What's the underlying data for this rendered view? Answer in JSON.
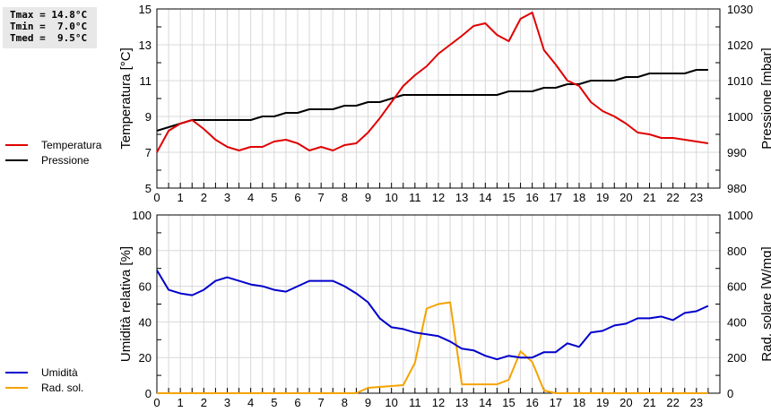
{
  "stats": {
    "tmax": "Tmax = 14.8°C",
    "tmin": "Tmin =  7.0°C",
    "tmed": "Tmed =  9.5°C"
  },
  "legend_top": [
    {
      "label": "Temperatura",
      "color": "#e00000"
    },
    {
      "label": "Pressione",
      "color": "#000000"
    }
  ],
  "legend_bottom": [
    {
      "label": "Umidità",
      "color": "#0000cc"
    },
    {
      "label": "Rad. sol.",
      "color": "#f5a300"
    }
  ],
  "chart_data": [
    {
      "type": "line",
      "title": "",
      "xlabel": "",
      "ylabel": "Temperatura [°C]",
      "y2label": "Pressione [mbar]",
      "xlim": [
        0,
        24
      ],
      "ylim": [
        5,
        15
      ],
      "y2lim": [
        980,
        1030
      ],
      "x_ticks": [
        0,
        1,
        2,
        3,
        4,
        5,
        6,
        7,
        8,
        9,
        10,
        11,
        12,
        13,
        14,
        15,
        16,
        17,
        18,
        19,
        20,
        21,
        22,
        23
      ],
      "y_ticks": [
        5,
        7,
        9,
        11,
        13,
        15
      ],
      "y2_ticks": [
        980,
        990,
        1000,
        1010,
        1020,
        1030
      ],
      "grid": true,
      "legend_position": "left",
      "x": [
        0,
        0.5,
        1,
        1.5,
        2,
        2.5,
        3,
        3.5,
        4,
        4.5,
        5,
        5.5,
        6,
        6.5,
        7,
        7.5,
        8,
        8.5,
        9,
        9.5,
        10,
        10.5,
        11,
        11.5,
        12,
        12.5,
        13,
        13.5,
        14,
        14.5,
        15,
        15.5,
        16,
        16.5,
        17,
        17.5,
        18,
        18.5,
        19,
        19.5,
        20,
        20.5,
        21,
        21.5,
        22,
        22.5,
        23,
        23.5
      ],
      "series": [
        {
          "name": "Temperatura",
          "axis": "left",
          "color": "#e00000",
          "values": [
            7.0,
            8.2,
            8.6,
            8.8,
            8.3,
            7.7,
            7.3,
            7.1,
            7.3,
            7.3,
            7.6,
            7.7,
            7.5,
            7.1,
            7.3,
            7.1,
            7.4,
            7.5,
            8.1,
            8.9,
            9.8,
            10.7,
            11.3,
            11.8,
            12.5,
            13.0,
            13.5,
            14.05,
            14.2,
            13.55,
            13.2,
            14.45,
            14.8,
            12.7,
            11.9,
            11.0,
            10.7,
            9.8,
            9.3,
            9.0,
            8.6,
            8.1,
            8.0,
            7.8,
            7.8,
            7.7,
            7.6,
            7.5
          ]
        },
        {
          "name": "Pressione",
          "axis": "right",
          "color": "#000000",
          "values": [
            996,
            997,
            998,
            999,
            999,
            999,
            999,
            999,
            999,
            1000,
            1000,
            1001,
            1001,
            1002,
            1002,
            1002,
            1003,
            1003,
            1004,
            1004,
            1005,
            1006,
            1006,
            1006,
            1006,
            1006,
            1006,
            1006,
            1006,
            1006,
            1007,
            1007,
            1007,
            1008,
            1008,
            1009,
            1009,
            1010,
            1010,
            1010,
            1011,
            1011,
            1012,
            1012,
            1012,
            1012,
            1013,
            1013
          ]
        }
      ]
    },
    {
      "type": "line",
      "title": "",
      "xlabel": "",
      "ylabel": "Umidità relativa [%]",
      "y2label": "Rad. solare [W/mq]",
      "xlim": [
        0,
        24
      ],
      "ylim": [
        0,
        100
      ],
      "y2lim": [
        0,
        1000
      ],
      "x_ticks": [
        0,
        1,
        2,
        3,
        4,
        5,
        6,
        7,
        8,
        9,
        10,
        11,
        12,
        13,
        14,
        15,
        16,
        17,
        18,
        19,
        20,
        21,
        22,
        23
      ],
      "y_ticks": [
        0,
        20,
        40,
        60,
        80,
        100
      ],
      "y2_ticks": [
        0,
        200,
        400,
        600,
        800,
        1000
      ],
      "grid": true,
      "legend_position": "left",
      "x": [
        0,
        0.5,
        1,
        1.5,
        2,
        2.5,
        3,
        3.5,
        4,
        4.5,
        5,
        5.5,
        6,
        6.5,
        7,
        7.5,
        8,
        8.5,
        9,
        9.5,
        10,
        10.5,
        11,
        11.5,
        12,
        12.5,
        13,
        13.5,
        14,
        14.5,
        15,
        15.5,
        16,
        16.5,
        17,
        17.5,
        18,
        18.5,
        19,
        19.5,
        20,
        20.5,
        21,
        21.5,
        22,
        22.5,
        23,
        23.5
      ],
      "series": [
        {
          "name": "Umidità",
          "axis": "left",
          "color": "#0000cc",
          "values": [
            69,
            58,
            56,
            55,
            58,
            63,
            65,
            63,
            61,
            60,
            58,
            57,
            60,
            63,
            63,
            63,
            60,
            56,
            51,
            42,
            37,
            36,
            34,
            33,
            32,
            29,
            25,
            24,
            21,
            19,
            21,
            20,
            20,
            23,
            23,
            28,
            26,
            34,
            35,
            38,
            39,
            42,
            42,
            43,
            41,
            45,
            46,
            49
          ]
        },
        {
          "name": "Rad. sol.",
          "axis": "right",
          "color": "#f5a300",
          "values": [
            0,
            0,
            0,
            0,
            0,
            0,
            0,
            0,
            0,
            0,
            0,
            0,
            0,
            0,
            0,
            0,
            0,
            0,
            30,
            35,
            40,
            45,
            170,
            475,
            500,
            510,
            50,
            50,
            50,
            50,
            75,
            235,
            175,
            15,
            0,
            0,
            0,
            0,
            0,
            0,
            0,
            0,
            0,
            0,
            0,
            0,
            0,
            0
          ]
        }
      ]
    }
  ]
}
